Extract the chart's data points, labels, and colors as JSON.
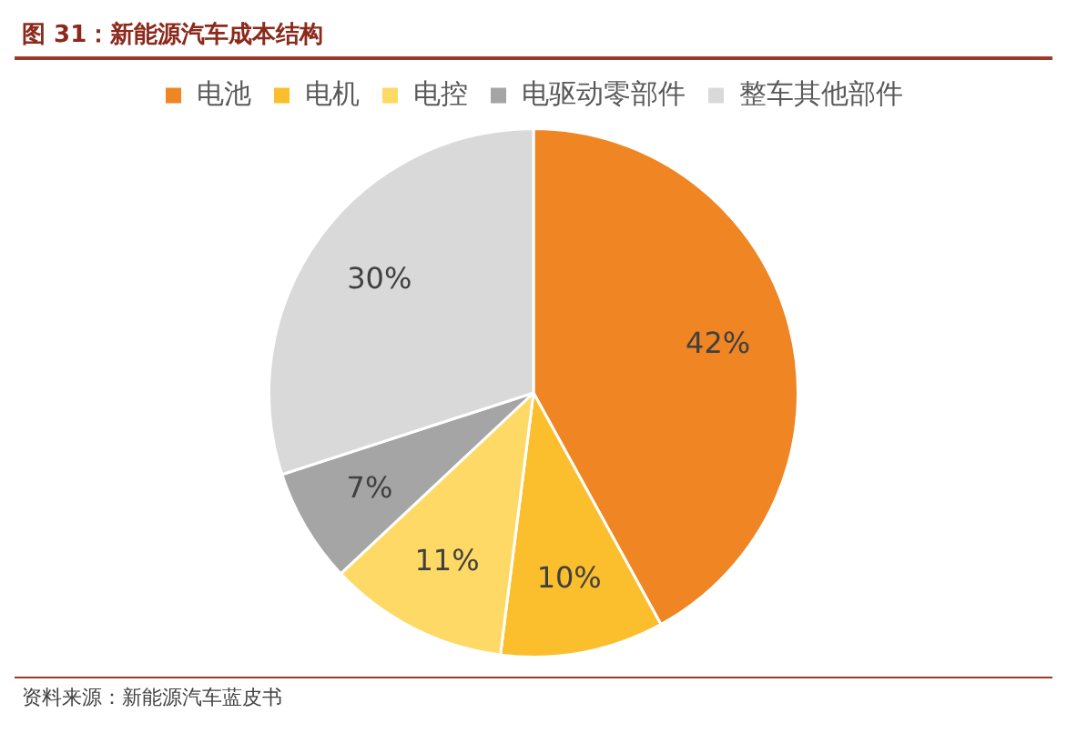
{
  "chart_data": {
    "type": "pie",
    "title": "图 31：新能源汽车成本结构",
    "categories": [
      "电池",
      "电机",
      "电控",
      "电驱动零部件",
      "整车其他部件"
    ],
    "values": [
      42,
      10,
      11,
      7,
      30
    ],
    "colors": [
      "#ef8523",
      "#fbbf2d",
      "#ffd966",
      "#a5a5a5",
      "#d9d9d9"
    ],
    "value_labels": [
      "42%",
      "10%",
      "11%",
      "7%",
      "30%"
    ],
    "legend": "top",
    "annotations": [
      "资料来源：新能源汽车蓝皮书"
    ]
  }
}
